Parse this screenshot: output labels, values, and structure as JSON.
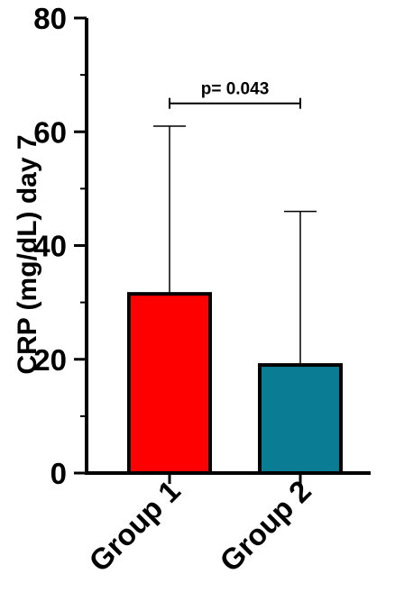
{
  "chart_data": {
    "type": "bar",
    "title": "",
    "xlabel": "",
    "ylabel": "CRP (mg/dL) day 7",
    "ylim": [
      0,
      80
    ],
    "yticks": [
      0,
      20,
      40,
      60,
      80
    ],
    "categories": [
      "Group 1",
      "Group 2"
    ],
    "values": [
      31.5,
      19
    ],
    "error_upper": [
      61,
      46
    ],
    "colors": [
      "#ff0000",
      "#0a7c94"
    ],
    "significance": {
      "from": "Group 1",
      "to": "Group 2",
      "label": "p= 0.043",
      "y": 65
    },
    "grid": false,
    "legend": "none"
  }
}
